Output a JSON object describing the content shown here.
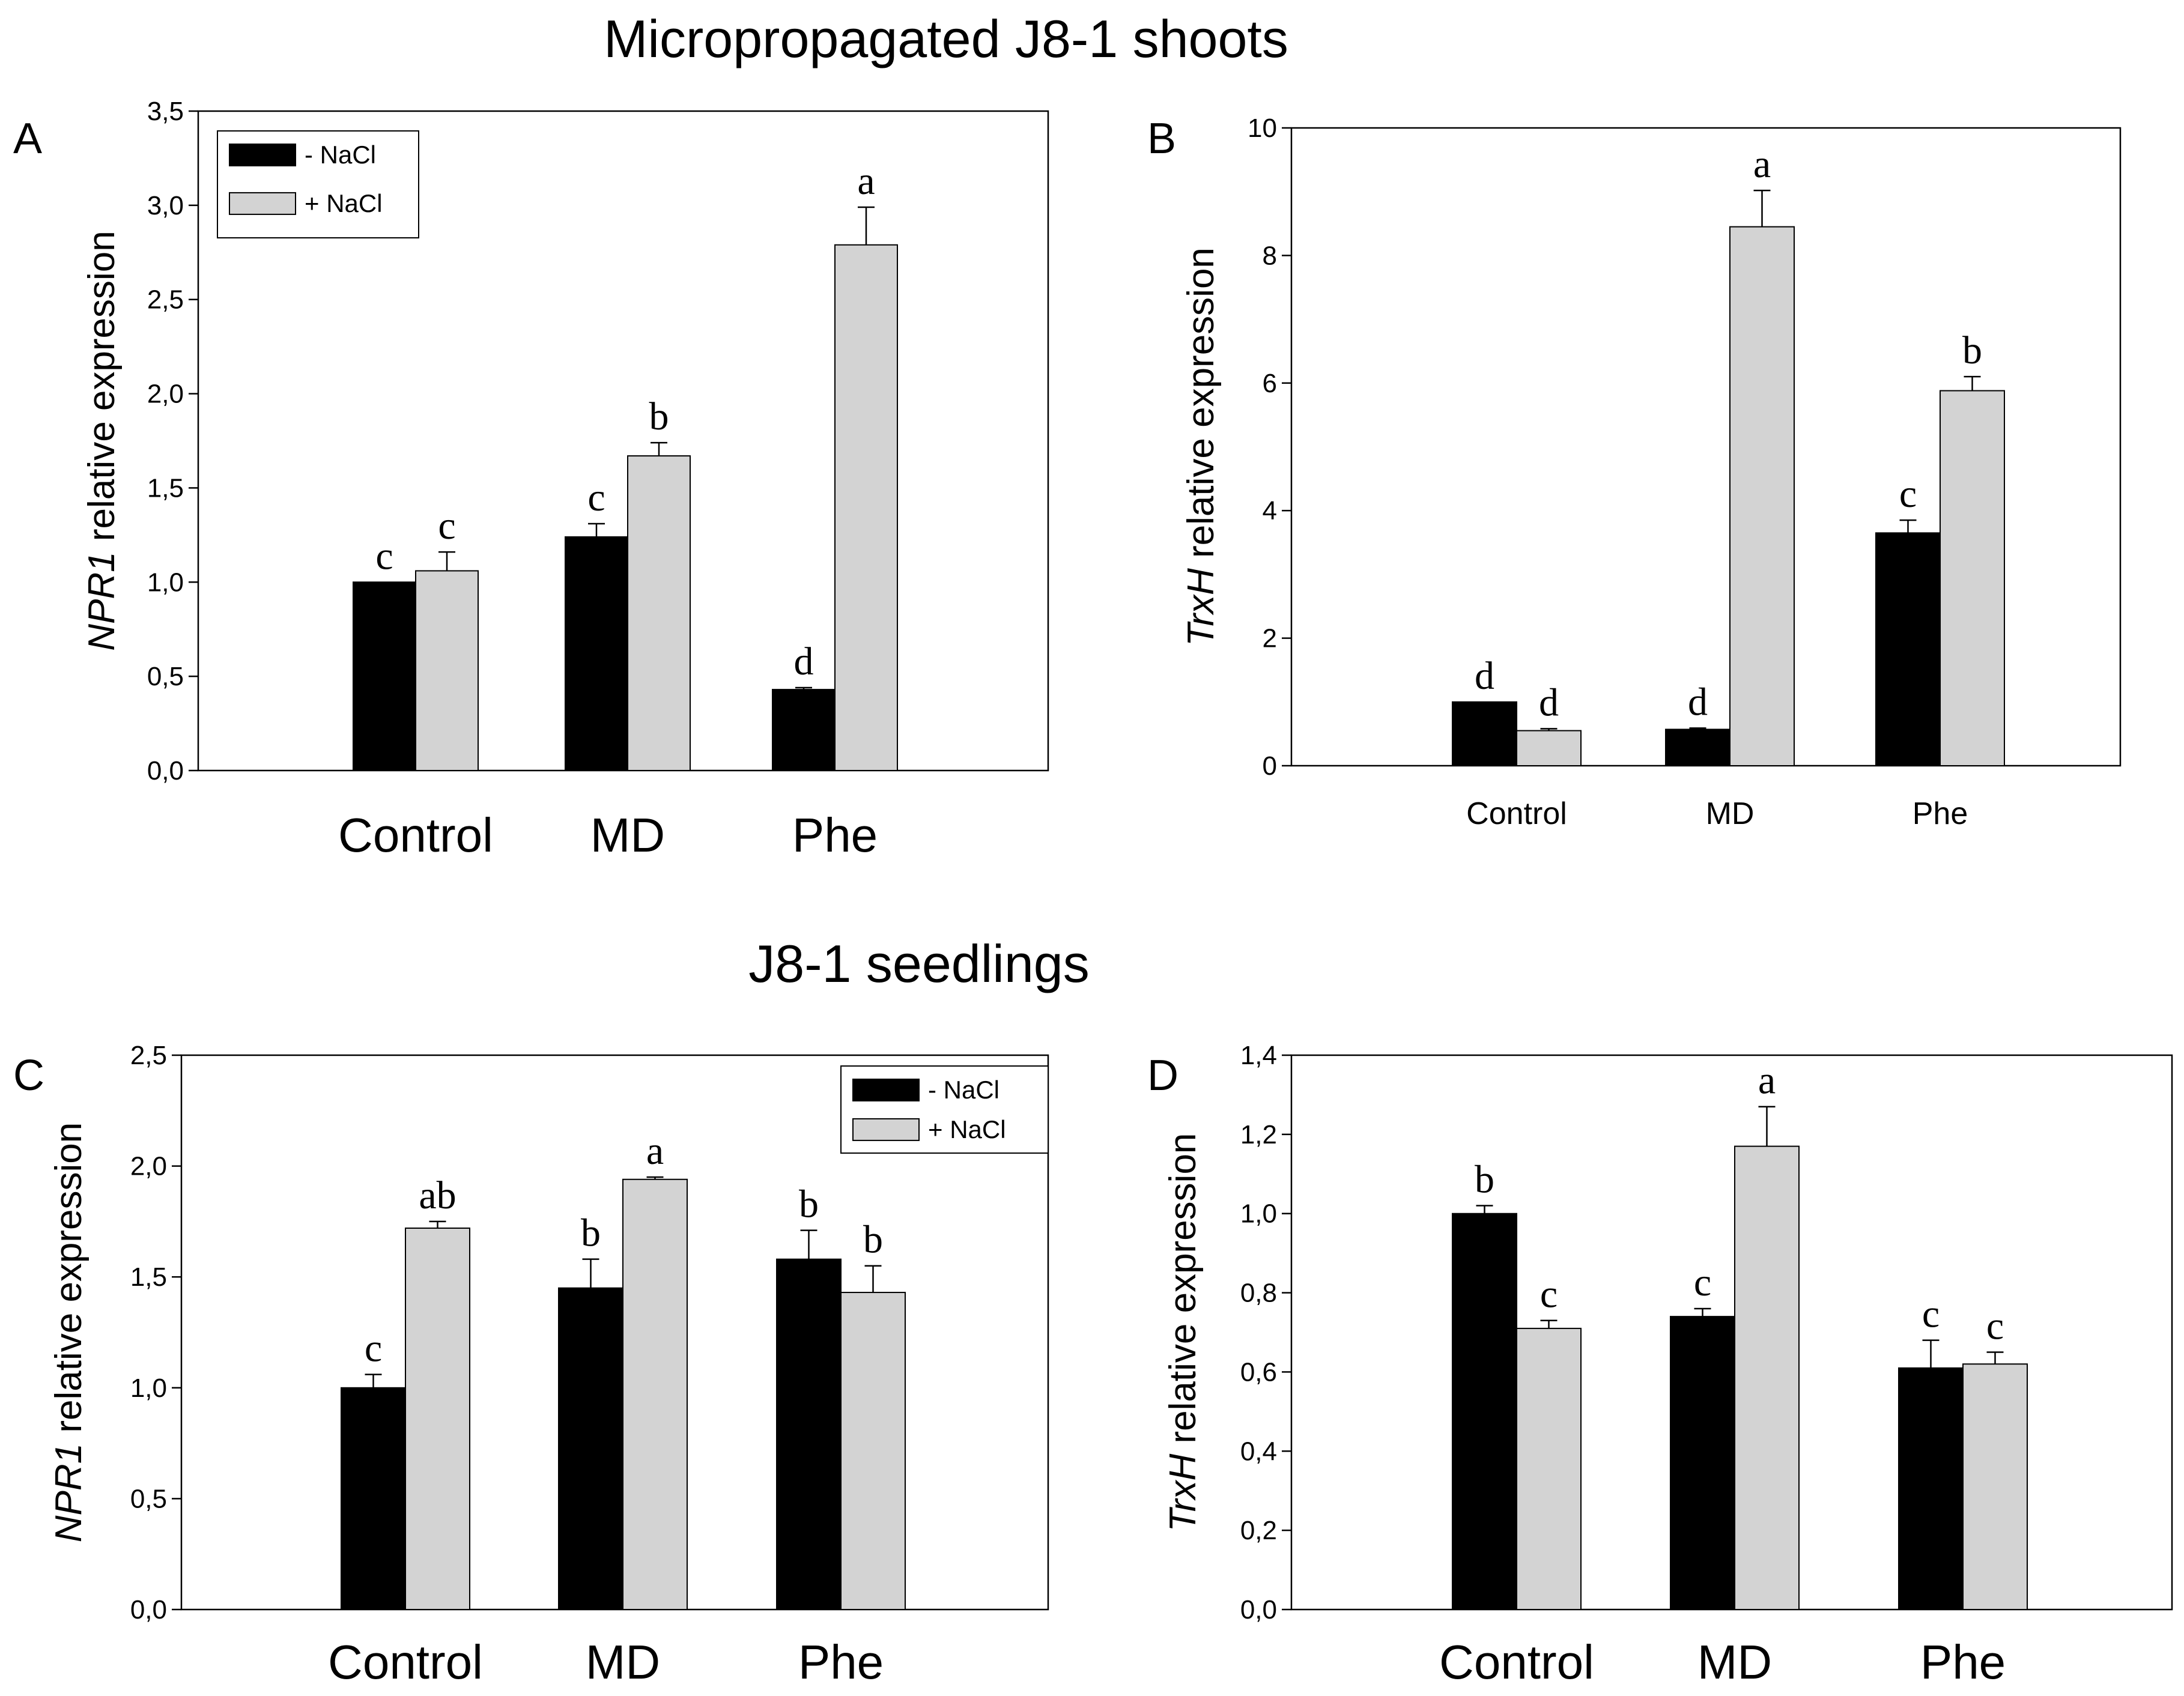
{
  "titles": {
    "top": "Micropropagated J8-1 shoots",
    "bottom": "J8-1 seedlings"
  },
  "legend": {
    "minus": "- NaCl",
    "plus": "+ NaCl"
  },
  "colors": {
    "minus_nacl": "#000000",
    "plus_nacl": "#d3d3d3",
    "axis": "#000000"
  },
  "chart_data": [
    {
      "panel": "A",
      "type": "bar",
      "ylabel_gene": "NPR1",
      "ylabel_rest": " relative expression",
      "categories": [
        "Control",
        "MD",
        "Phe"
      ],
      "ylim": [
        0,
        3.5
      ],
      "ticks": [
        "0,0",
        "0,5",
        "1,0",
        "1,5",
        "2,0",
        "2,5",
        "3,0",
        "3,5"
      ],
      "legend_position": "top-left",
      "series": [
        {
          "name": "- NaCl",
          "values": [
            1.0,
            1.24,
            0.43
          ],
          "errors": [
            0.0,
            0.07,
            0.01
          ],
          "letters": [
            "c",
            "c",
            "d"
          ]
        },
        {
          "name": "+ NaCl",
          "values": [
            1.06,
            1.67,
            2.79
          ],
          "errors": [
            0.1,
            0.07,
            0.2
          ],
          "letters": [
            "c",
            "b",
            "a"
          ]
        }
      ]
    },
    {
      "panel": "B",
      "type": "bar",
      "ylabel_gene": "TrxH",
      "ylabel_rest": " relative expression",
      "categories": [
        "Control",
        "MD",
        "Phe"
      ],
      "ylim": [
        0,
        10
      ],
      "ticks": [
        "0",
        "2",
        "4",
        "6",
        "8",
        "10"
      ],
      "legend_position": "none",
      "series": [
        {
          "name": "- NaCl",
          "values": [
            1.0,
            0.57,
            3.65
          ],
          "errors": [
            0.0,
            0.02,
            0.2
          ],
          "letters": [
            "d",
            "d",
            "c"
          ]
        },
        {
          "name": "+ NaCl",
          "values": [
            0.55,
            8.45,
            5.88
          ],
          "errors": [
            0.03,
            0.57,
            0.22
          ],
          "letters": [
            "d",
            "a",
            "b"
          ]
        }
      ]
    },
    {
      "panel": "C",
      "type": "bar",
      "ylabel_gene": "NPR1",
      "ylabel_rest": " relative expression",
      "categories": [
        "Control",
        "MD",
        "Phe"
      ],
      "ylim": [
        0,
        2.5
      ],
      "ticks": [
        "0,0",
        "0,5",
        "1,0",
        "1,5",
        "2,0",
        "2,5"
      ],
      "legend_position": "top-right",
      "series": [
        {
          "name": "- NaCl",
          "values": [
            1.0,
            1.45,
            1.58
          ],
          "errors": [
            0.06,
            0.13,
            0.13
          ],
          "letters": [
            "c",
            "b",
            "b"
          ]
        },
        {
          "name": "+ NaCl",
          "values": [
            1.72,
            1.94,
            1.43
          ],
          "errors": [
            0.03,
            0.01,
            0.12
          ],
          "letters": [
            "ab",
            "a",
            "b"
          ]
        }
      ]
    },
    {
      "panel": "D",
      "type": "bar",
      "ylabel_gene": "TrxH",
      "ylabel_rest": " relative expression",
      "categories": [
        "Control",
        "MD",
        "Phe"
      ],
      "ylim": [
        0,
        1.4
      ],
      "ticks": [
        "0,0",
        "0,2",
        "0,4",
        "0,6",
        "0,8",
        "1,0",
        "1,2",
        "1,4"
      ],
      "legend_position": "none",
      "series": [
        {
          "name": "- NaCl",
          "values": [
            1.0,
            0.74,
            0.61
          ],
          "errors": [
            0.02,
            0.02,
            0.07
          ],
          "letters": [
            "b",
            "c",
            "c"
          ]
        },
        {
          "name": "+ NaCl",
          "values": [
            0.71,
            1.17,
            0.62
          ],
          "errors": [
            0.02,
            0.1,
            0.03
          ],
          "letters": [
            "c",
            "a",
            "c"
          ]
        }
      ]
    }
  ]
}
